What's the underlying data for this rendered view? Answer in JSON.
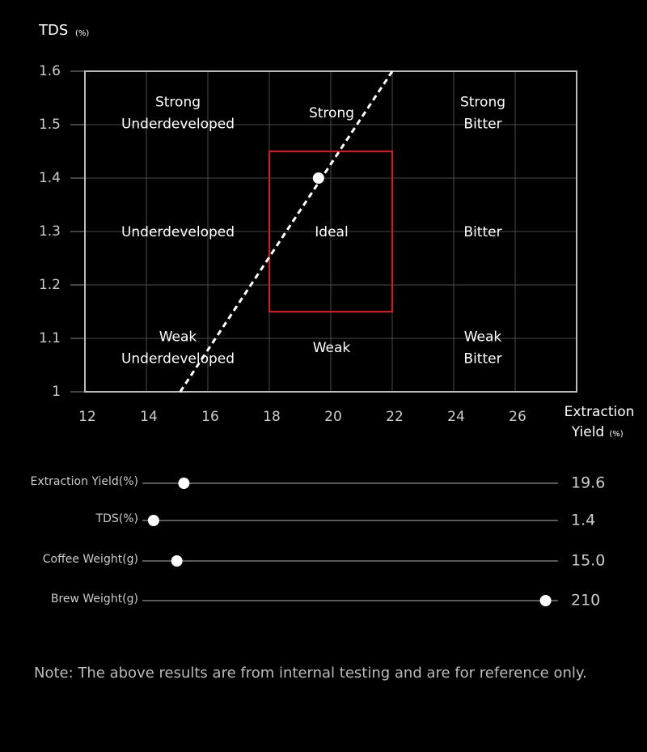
{
  "chart_data": {
    "type": "line",
    "y_label": {
      "text": "TDS",
      "unit": "(%)"
    },
    "x_label": {
      "lines": [
        "Extraction",
        "Yield"
      ],
      "unit": "(%)"
    },
    "xlim": [
      12,
      28
    ],
    "ylim": [
      1,
      1.6
    ],
    "xticks": [
      12,
      14,
      16,
      18,
      20,
      22,
      24,
      26
    ],
    "yticks": [
      1,
      1.1,
      1.2,
      1.3,
      1.4,
      1.5,
      1.6
    ],
    "grid": true,
    "series": [
      {
        "color": "#ffffff",
        "style": "dashed",
        "x": [
          15.1,
          22
        ],
        "y": [
          1,
          1.6
        ]
      },
      {
        "color": "#ffffff",
        "style": "point",
        "x": [
          19.6
        ],
        "y": [
          1.4
        ]
      }
    ],
    "ideal_box": {
      "color": "#e0151b",
      "x": [
        18,
        22
      ],
      "y": [
        1.15,
        1.45
      ]
    },
    "zones": [
      {
        "lines": [
          "Strong",
          "Underdeveloped"
        ]
      },
      {
        "lines": [
          "Strong"
        ]
      },
      {
        "lines": [
          "Strong",
          "Bitter"
        ]
      },
      {
        "lines": [
          "Underdeveloped"
        ]
      },
      {
        "lines": [
          "Ideal"
        ]
      },
      {
        "lines": [
          "Bitter"
        ]
      },
      {
        "lines": [
          "Weak",
          "Underdeveloped"
        ]
      },
      {
        "lines": [
          "Weak"
        ]
      },
      {
        "lines": [
          "Weak",
          "Bitter"
        ]
      }
    ]
  },
  "sliders": [
    {
      "label": "Extraction Yield(%)",
      "value": "19.6",
      "knob_position": 0.1
    },
    {
      "label": "TDS(%)",
      "value": "1.4",
      "knob_position": 0.027
    },
    {
      "label": "Coffee Weight(g)",
      "value": "15.0",
      "knob_position": 0.083
    },
    {
      "label": "Brew Weight(g)",
      "value": "210",
      "knob_position": 0.97
    }
  ],
  "note": "Note: The above results are from internal testing and are for reference only."
}
